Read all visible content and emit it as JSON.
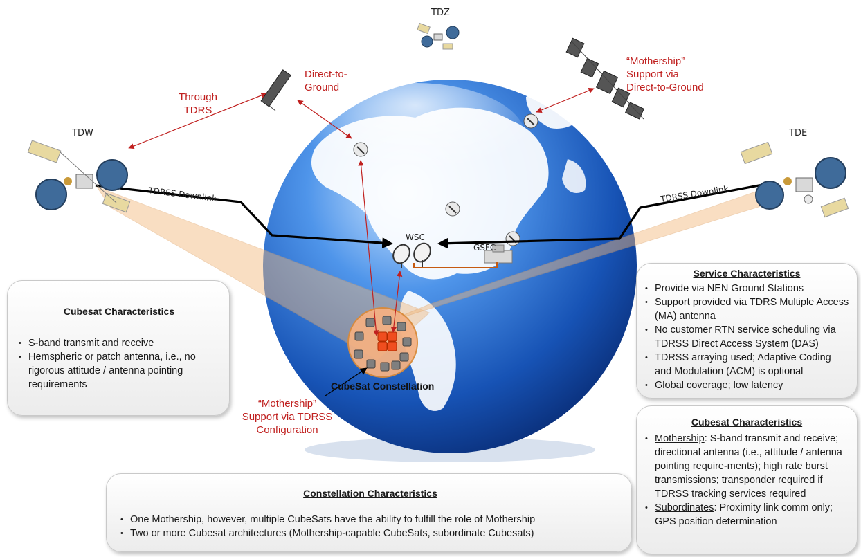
{
  "labels": {
    "tdz": "TDZ",
    "tdw": "TDW",
    "tde": "TDE",
    "wsc": "WSC",
    "gsfc": "GSFC",
    "downlink_left": "TDRSS Downlink",
    "downlink_right": "TDRSS Downlink",
    "constellation": "CubeSat Constellation"
  },
  "red_labels": {
    "through_tdrs": [
      "Through",
      "TDRS"
    ],
    "direct_to_ground": [
      "Direct-to-",
      "Ground"
    ],
    "mothership_direct": [
      "“Mothership”",
      "Support via",
      "Direct-to-Ground"
    ],
    "mothership_tdrss": [
      "“Mothership”",
      "Support via TDRSS",
      "Configuration"
    ]
  },
  "cubesat_box_left": {
    "title": "Cubesat Characteristics",
    "items": [
      "S-band transmit and receive",
      "Hemspheric or patch antenna, i.e., no rigorous attitude / antenna pointing requirements"
    ]
  },
  "service_box": {
    "title": "Service Characteristics",
    "items": [
      "Provide via NEN Ground Stations",
      "Support provided via TDRS Multiple Access (MA) antenna",
      "No customer RTN service scheduling via TDRSS Direct Access System (DAS)",
      "TDRSS arraying used; Adaptive Coding and Modulation (ACM) is optional",
      "Global coverage; low latency"
    ]
  },
  "cubesat_box_right": {
    "title": "Cubesat Characteristics",
    "mothership_term": "Mothership",
    "mothership_text": ":  S-band transmit and receive; directional antenna (i.e., attitude / antenna pointing require-ments);  high rate burst transmissions; transponder required if TDRSS tracking services required",
    "subordinates_term": "Subordinates",
    "subordinates_text": ":  Proximity link comm only;  GPS position determination"
  },
  "constellation_box": {
    "title": "Constellation Characteristics",
    "items": [
      "One Mothership, however, multiple CubeSats have the ability to fulfill the role of Mothership",
      "Two or more Cubesat architectures (Mothership-capable CubeSats, subordinate Cubesats)"
    ]
  },
  "colors": {
    "link_red": "#c0201f",
    "downlink": "#000000",
    "beam": "#f3b87a",
    "globe_ocean": "#1c5fc4",
    "wsc_gsfc_link": "#c55a11"
  }
}
